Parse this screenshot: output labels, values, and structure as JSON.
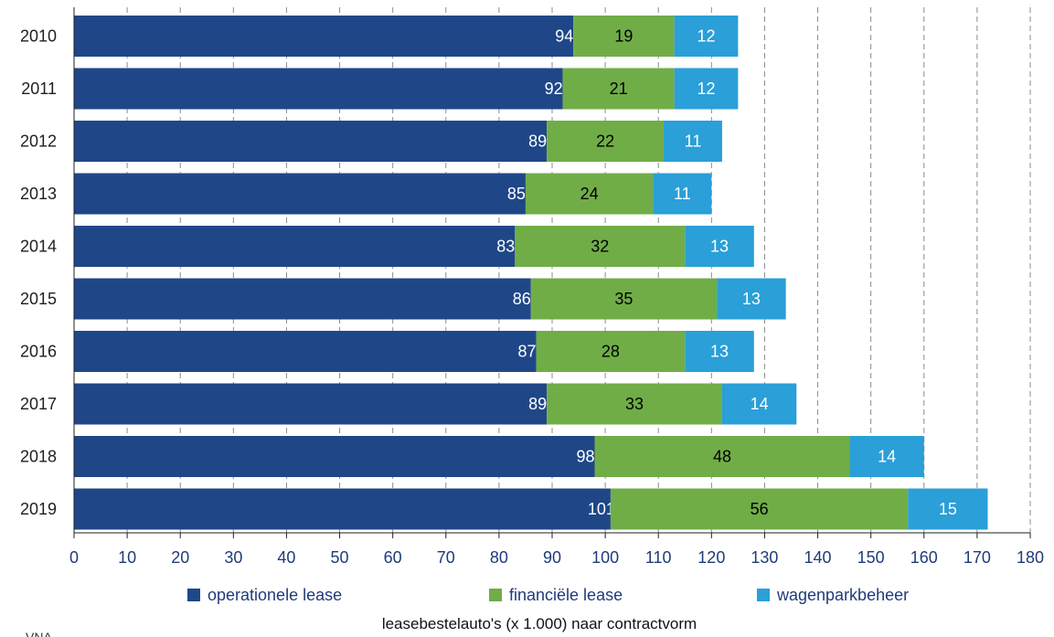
{
  "chart_data": {
    "type": "bar",
    "orientation": "horizontal",
    "stacked": true,
    "categories": [
      "2010",
      "2011",
      "2012",
      "2013",
      "2014",
      "2015",
      "2016",
      "2017",
      "2018",
      "2019"
    ],
    "series": [
      {
        "name": "operationele lease",
        "values": [
          94,
          92,
          89,
          85,
          83,
          86,
          87,
          89,
          98,
          101
        ],
        "color": "#1f4788",
        "label_color": "#ffffff"
      },
      {
        "name": "financiële lease",
        "values": [
          19,
          21,
          22,
          24,
          32,
          35,
          28,
          33,
          48,
          56
        ],
        "color": "#70ad47",
        "label_color": "#000000"
      },
      {
        "name": "wagenparkbeheer",
        "values": [
          12,
          12,
          11,
          11,
          13,
          13,
          13,
          14,
          14,
          15
        ],
        "color": "#2a9fd8",
        "label_color": "#ffffff"
      }
    ],
    "xlim": [
      0,
      180
    ],
    "xticks": [
      0,
      10,
      20,
      30,
      40,
      50,
      60,
      70,
      80,
      90,
      100,
      110,
      120,
      130,
      140,
      150,
      160,
      170,
      180
    ],
    "grid": "vertical dashed from 130",
    "legend_position": "bottom",
    "title": "",
    "xlabel": "leasebestelauto's (x 1.000) naar contractvorm",
    "ylabel": ""
  },
  "source_text": "VNA"
}
